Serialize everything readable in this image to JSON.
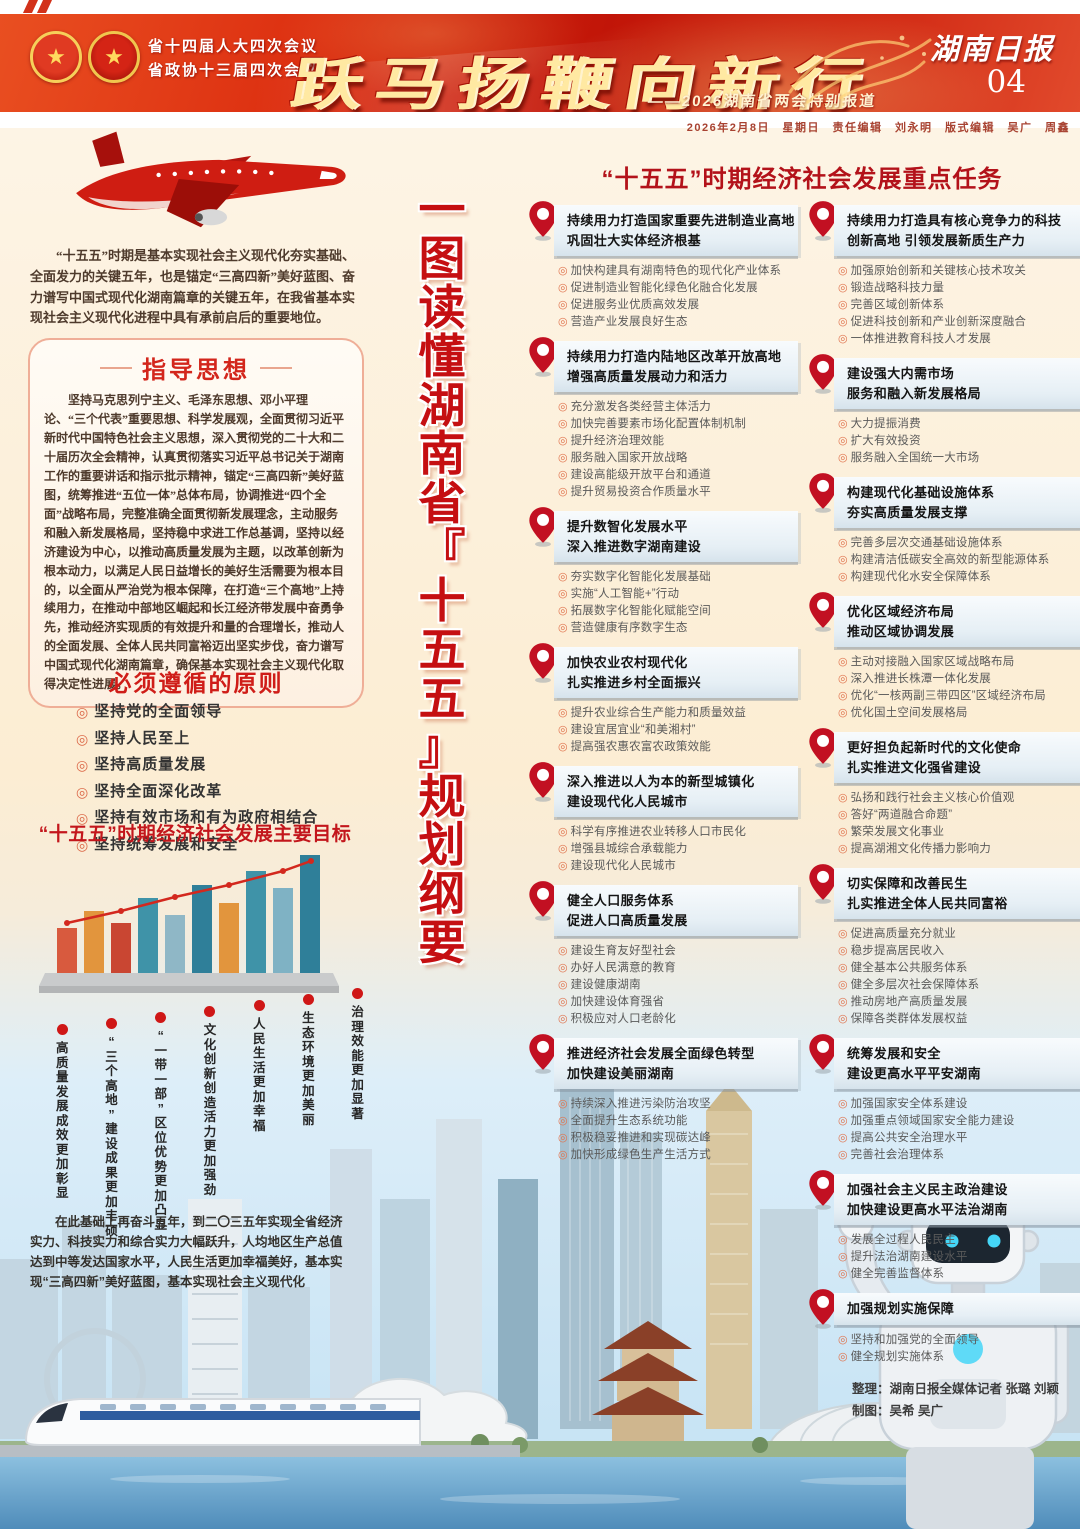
{
  "colors": {
    "accent_red": "#c50f12",
    "banner_red": "#d22a12",
    "bullet_orange": "#e0744f"
  },
  "header": {
    "meeting_line1": "省十四届人大四次会议",
    "meeting_line2": "省政协十三届四次会议",
    "main_title": "跃马扬鞭向新行",
    "subtitle": "——2026湖南省两会特别报道",
    "masthead": "湖南日报",
    "page_number": "04",
    "date_line": "2026年2月8日　星期日　责任编辑　刘永明　版式编辑　吴广　周鑫"
  },
  "center_title": "一图读懂湖南省『十五五』规划纲要",
  "left": {
    "intro": "“十五五”时期是基本实现社会主义现代化夯实基础、全面发力的关键五年，也是锚定“三高四新”美好蓝图、奋力谱写中国式现代化湖南篇章的关键五年，在我省基本实现社会主义现代化进程中具有承前启后的重要地位。",
    "guiding": {
      "title": "指导思想",
      "body": "坚持马克思列宁主义、毛泽东思想、邓小平理论、“三个代表”重要思想、科学发展观，全面贯彻习近平新时代中国特色社会主义思想，深入贯彻党的二十大和二十届历次全会精神，认真贯彻落实习近平总书记关于湖南工作的重要讲话和指示批示精神，锚定“三高四新”美好蓝图，统筹推进“五位一体”总体布局，协调推进“四个全面”战略布局，完整准确全面贯彻新发展理念，主动服务和融入新发展格局，坚持稳中求进工作总基调，坚持以经济建设为中心，以推动高质量发展为主题，以改革创新为根本动力，以满足人民日益增长的美好生活需要为根本目的，以全面从严治党为根本保障，在打造“三个高地”上持续用力，在推动中部地区崛起和长江经济带发展中奋勇争先，推动经济实现质的有效提升和量的合理增长，推动人的全面发展、全体人民共同富裕迈出坚实步伐，奋力谱写中国式现代化湖南篇章，确保基本实现社会主义现代化取得决定性进展。"
    },
    "principles": {
      "title": "必须遵循的原则",
      "items": [
        "坚持党的全面领导",
        "坚持人民至上",
        "坚持高质量发展",
        "坚持全面深化改革",
        "坚持有效市场和有为政府相结合",
        "坚持统筹发展和安全"
      ]
    },
    "goals": {
      "title": "“十五五”时期经济社会发展主要目标",
      "items": [
        "治理效能更加显著",
        "生态环境更加美丽",
        "人民生活更加幸福",
        "文化创新创造活力更加强劲",
        "“一带一部”区位优势更加凸显",
        "“三个高地”建设成果更加丰硕",
        "高质量发展成效更加彰显"
      ]
    },
    "outlook": "在此基础上再奋斗五年，到二〇三五年实现全省经济实力、科技实力和综合实力大幅跃升，人均地区生产总值达到中等发达国家水平，人民生活更加幸福美好，基本实现“三高四新”美好蓝图，基本实现社会主义现代化"
  },
  "tasks": {
    "title": "“十五五”时期经济社会发展重点任务",
    "col_left": [
      {
        "title": [
          "持续用力打造国家重要先进制造业高地",
          "巩固壮大实体经济根基"
        ],
        "bullets": [
          "加快构建具有湖南特色的现代化产业体系",
          "促进制造业智能化绿色化融合化发展",
          "促进服务业优质高效发展",
          "营造产业发展良好生态"
        ]
      },
      {
        "title": [
          "持续用力打造内陆地区改革开放高地",
          "增强高质量发展动力和活力"
        ],
        "bullets": [
          "充分激发各类经营主体活力",
          "加快完善要素市场化配置体制机制",
          "提升经济治理效能",
          "服务融入国家开放战略",
          "建设高能级开放平台和通道",
          "提升贸易投资合作质量水平"
        ]
      },
      {
        "title": [
          "提升数智化发展水平",
          "深入推进数字湖南建设"
        ],
        "bullets": [
          "夯实数字化智能化发展基础",
          "实施“人工智能+”行动",
          "拓展数字化智能化赋能空间",
          "营造健康有序数字生态"
        ]
      },
      {
        "title": [
          "加快农业农村现代化",
          "扎实推进乡村全面振兴"
        ],
        "bullets": [
          "提升农业综合生产能力和质量效益",
          "建设宜居宜业“和美湘村”",
          "提高强农惠农富农政策效能"
        ]
      },
      {
        "title": [
          "深入推进以人为本的新型城镇化",
          "建设现代化人民城市"
        ],
        "bullets": [
          "科学有序推进农业转移人口市民化",
          "增强县城综合承载能力",
          "建设现代化人民城市"
        ]
      },
      {
        "title": [
          "健全人口服务体系",
          "促进人口高质量发展"
        ],
        "bullets": [
          "建设生育友好型社会",
          "办好人民满意的教育",
          "建设健康湖南",
          "加快建设体育强省",
          "积极应对人口老龄化"
        ]
      },
      {
        "title": [
          "推进经济社会发展全面绿色转型",
          "加快建设美丽湖南"
        ],
        "bullets": [
          "持续深入推进污染防治攻坚",
          "全面提升生态系统功能",
          "积极稳妥推进和实现碳达峰",
          "加快形成绿色生产生活方式"
        ]
      }
    ],
    "col_right": [
      {
        "title": [
          "持续用力打造具有核心竞争力的科技",
          "创新高地  引领发展新质生产力"
        ],
        "bullets": [
          "加强原始创新和关键核心技术攻关",
          "锻造战略科技力量",
          "完善区域创新体系",
          "促进科技创新和产业创新深度融合",
          "一体推进教育科技人才发展"
        ]
      },
      {
        "title": [
          "建设强大内需市场",
          "服务和融入新发展格局"
        ],
        "bullets": [
          "大力提振消费",
          "扩大有效投资",
          "服务融入全国统一大市场"
        ]
      },
      {
        "title": [
          "构建现代化基础设施体系",
          "夯实高质量发展支撑"
        ],
        "bullets": [
          "完善多层次交通基础设施体系",
          "构建清洁低碳安全高效的新型能源体系",
          "构建现代化水安全保障体系"
        ]
      },
      {
        "title": [
          "优化区域经济布局",
          "推动区域协调发展"
        ],
        "bullets": [
          "主动对接融入国家区域战略布局",
          "深入推进长株潭一体化发展",
          "优化“一核两副三带四区”区域经济布局",
          "优化国土空间发展格局"
        ]
      },
      {
        "title": [
          "更好担负起新时代的文化使命",
          "扎实推进文化强省建设"
        ],
        "bullets": [
          "弘扬和践行社会主义核心价值观",
          "答好“两道融合命题”",
          "繁荣发展文化事业",
          "提高湖湘文化传播力影响力"
        ]
      },
      {
        "title": [
          "切实保障和改善民生",
          "扎实推进全体人民共同富裕"
        ],
        "bullets": [
          "促进高质量充分就业",
          "稳步提高居民收入",
          "健全基本公共服务体系",
          "健全多层次社会保障体系",
          "推动房地产高质量发展",
          "保障各类群体发展权益"
        ]
      },
      {
        "title": [
          "统筹发展和安全",
          "建设更高水平平安湖南"
        ],
        "bullets": [
          "加强国家安全体系建设",
          "加强重点领域国家安全能力建设",
          "提高公共安全治理水平",
          "完善社会治理体系"
        ]
      },
      {
        "title": [
          "加强社会主义民主政治建设",
          "加快建设更高水平法治湖南"
        ],
        "bullets": [
          "发展全过程人民民主",
          "提升法治湖南建设水平",
          "健全完善监督体系"
        ]
      },
      {
        "title": [
          "加强规划实施保障",
          ""
        ],
        "bullets": [
          "坚持和加强党的全面领导",
          "健全规划实施体系"
        ]
      }
    ],
    "credits_line1": "整理：湖南日报全媒体记者 张璐 刘颖",
    "credits_line2": "制图：吴希 吴广"
  }
}
